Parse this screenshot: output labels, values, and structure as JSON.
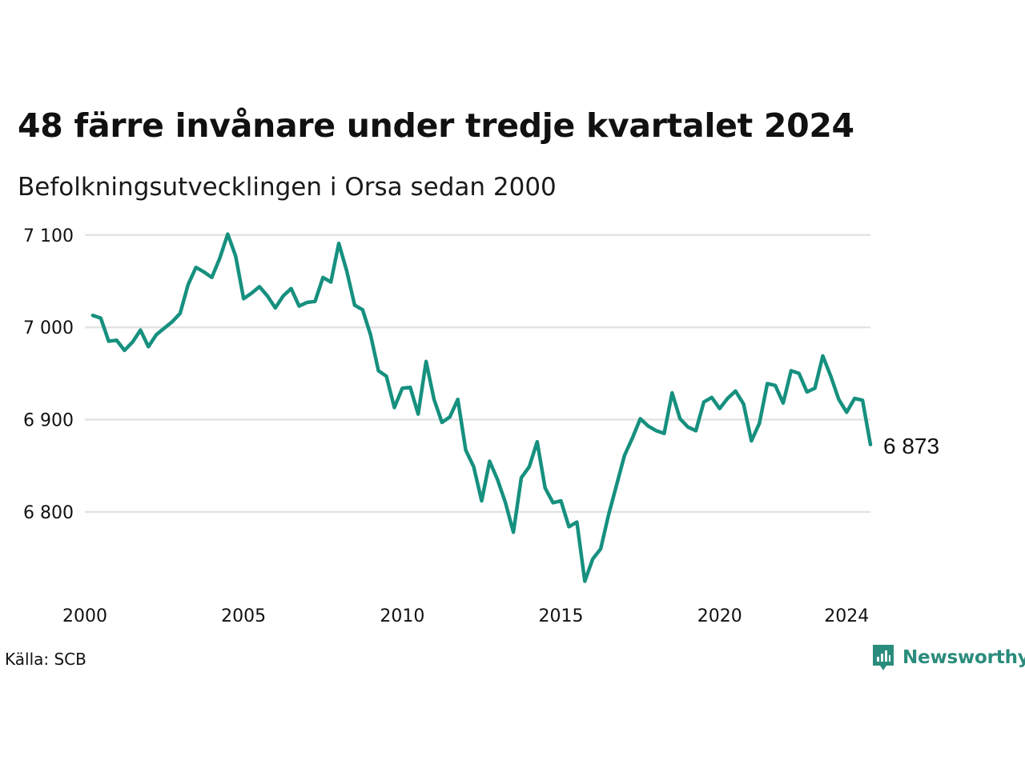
{
  "title": "48 färre invånare under tredje kvartalet 2024",
  "subtitle": "Befolkningsutvecklingen i Orsa sedan 2000",
  "source": "Källa: SCB",
  "brand": {
    "name": "Newsworthy",
    "icon": "newsworthy-logo-icon",
    "color": "#2a8c7c"
  },
  "chart_data": {
    "type": "line",
    "title": "48 färre invånare under tredje kvartalet 2024",
    "subtitle": "Befolkningsutvecklingen i Orsa sedan 2000",
    "line_color": "#16907f",
    "grid": true,
    "legend": "none",
    "xlim": [
      2000.0,
      2024.75
    ],
    "ylim": [
      6715,
      7105
    ],
    "y_ticks": [
      7100,
      7000,
      6900,
      6800
    ],
    "y_tick_labels": [
      "7 100",
      "7 000",
      "6 900",
      "6 800"
    ],
    "x_ticks": [
      2000,
      2005,
      2010,
      2015,
      2020,
      2024
    ],
    "x_tick_labels": [
      "2000",
      "2005",
      "2010",
      "2015",
      "2020",
      "2024"
    ],
    "end_label": "6 873",
    "series": [
      {
        "x": [
          2000.25,
          2000.5,
          2000.75,
          2001.0,
          2001.25,
          2001.5,
          2001.75,
          2002.0,
          2002.25,
          2002.5,
          2002.75,
          2003.0,
          2003.25,
          2003.5,
          2003.75,
          2004.0,
          2004.25,
          2004.5,
          2004.75,
          2005.0,
          2005.25,
          2005.5,
          2005.75,
          2006.0,
          2006.25,
          2006.5,
          2006.75,
          2007.0,
          2007.25,
          2007.5,
          2007.75,
          2008.0,
          2008.25,
          2008.5,
          2008.75,
          2009.0,
          2009.25,
          2009.5,
          2009.75,
          2010.0,
          2010.25,
          2010.5,
          2010.75,
          2011.0,
          2011.25,
          2011.5,
          2011.75,
          2012.0,
          2012.25,
          2012.5,
          2012.75,
          2013.0,
          2013.25,
          2013.5,
          2013.75,
          2014.0,
          2014.25,
          2014.5,
          2014.75,
          2015.0,
          2015.25,
          2015.5,
          2015.75,
          2016.0,
          2016.25,
          2016.5,
          2016.75,
          2017.0,
          2017.25,
          2017.5,
          2017.75,
          2018.0,
          2018.25,
          2018.5,
          2018.75,
          2019.0,
          2019.25,
          2019.5,
          2019.75,
          2020.0,
          2020.25,
          2020.5,
          2020.75,
          2021.0,
          2021.25,
          2021.5,
          2021.75,
          2022.0,
          2022.25,
          2022.5,
          2022.75,
          2023.0,
          2023.25,
          2023.5,
          2023.75,
          2024.0,
          2024.25,
          2024.5,
          2024.75
        ],
        "values": [
          7013,
          7010,
          6985,
          6986,
          6975,
          6984,
          6997,
          6979,
          6992,
          6999,
          7006,
          7015,
          7046,
          7065,
          7060,
          7054,
          7075,
          7101,
          7077,
          7031,
          7037,
          7044,
          7034,
          7021,
          7034,
          7042,
          7023,
          7027,
          7028,
          7054,
          7049,
          7091,
          7061,
          7024,
          7019,
          6992,
          6953,
          6947,
          6913,
          6934,
          6935,
          6906,
          6963,
          6922,
          6897,
          6903,
          6922,
          6867,
          6849,
          6812,
          6855,
          6835,
          6810,
          6778,
          6837,
          6849,
          6876,
          6826,
          6810,
          6812,
          6784,
          6789,
          6725,
          6749,
          6760,
          6797,
          6829,
          6861,
          6880,
          6901,
          6893,
          6888,
          6885,
          6929,
          6901,
          6892,
          6888,
          6919,
          6924,
          6912,
          6923,
          6931,
          6917,
          6877,
          6896,
          6939,
          6937,
          6918,
          6953,
          6950,
          6930,
          6934,
          6969,
          6947,
          6922,
          6908,
          6923,
          6921,
          6873
        ]
      }
    ]
  }
}
